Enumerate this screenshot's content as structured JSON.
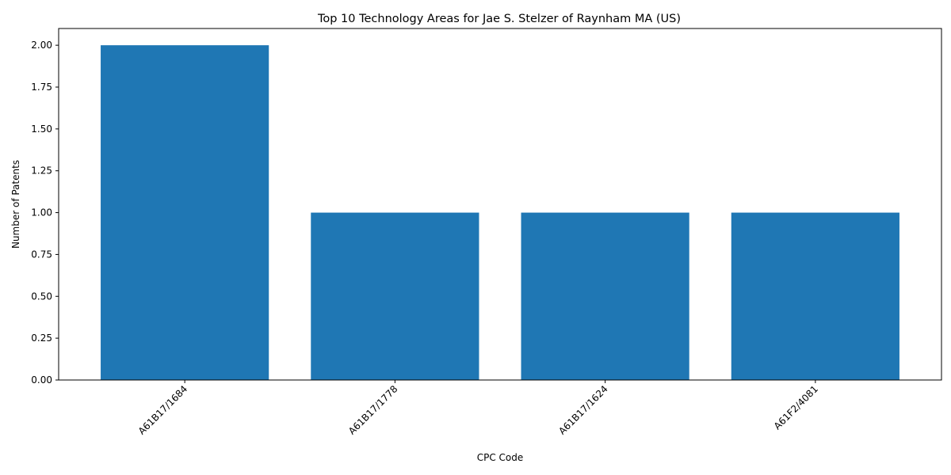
{
  "chart_data": {
    "type": "bar",
    "title": "Top 10 Technology Areas for Jae S. Stelzer of Raynham MA (US)",
    "xlabel": "CPC Code",
    "ylabel": "Number of Patents",
    "categories": [
      "A61B17/1684",
      "A61B17/1778",
      "A61B17/1624",
      "A61F2/4081"
    ],
    "values": [
      2,
      1,
      1,
      1
    ],
    "ylim": [
      0,
      2.1
    ],
    "yticks": [
      "0.00",
      "0.25",
      "0.50",
      "0.75",
      "1.00",
      "1.25",
      "1.50",
      "1.75",
      "2.00"
    ],
    "bar_color": "#1f77b4",
    "grid": false,
    "legend": "none"
  }
}
